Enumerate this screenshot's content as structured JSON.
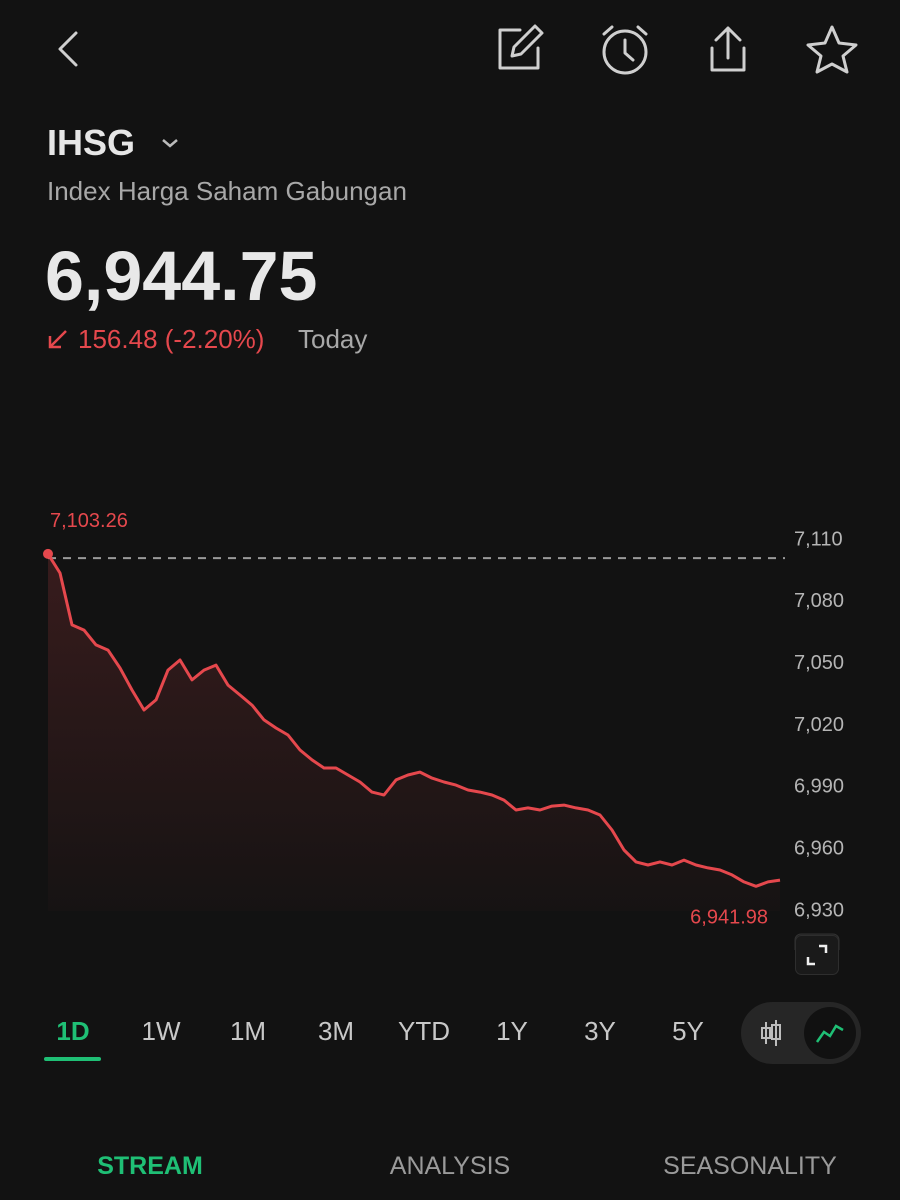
{
  "header": {
    "ticker": "IHSG",
    "name": "Index Harga Saham Gabungan",
    "price": "6,944.75",
    "change": "156.48 (-2.20%)",
    "period": "Today"
  },
  "ranges": [
    "1D",
    "1W",
    "1M",
    "3M",
    "YTD",
    "1Y",
    "3Y",
    "5Y"
  ],
  "tabs": [
    "STREAM",
    "ANALYSIS",
    "SEASONALITY"
  ],
  "chart_data": {
    "type": "line",
    "color": "#e5484d",
    "grid": false,
    "values": [
      7103.26,
      7094.0,
      7068.8,
      7066.3,
      7059.1,
      7056.6,
      7047.9,
      7037.2,
      7027.5,
      7032.4,
      7046.9,
      7051.8,
      7042.1,
      7046.9,
      7049.3,
      7039.6,
      7034.8,
      7029.9,
      7022.7,
      7018.8,
      7015.4,
      7008.1,
      7003.3,
      6999.4,
      6999.4,
      6996.0,
      6992.6,
      6987.7,
      6986.3,
      6993.6,
      6996.0,
      6997.4,
      6994.5,
      6992.6,
      6991.1,
      6988.7,
      6987.7,
      6986.3,
      6983.8,
      6979.0,
      6980.0,
      6979.0,
      6980.9,
      6981.4,
      6980.0,
      6979.0,
      6976.6,
      6969.3,
      6959.6,
      6953.8,
      6952.3,
      6953.8,
      6952.3,
      6954.7,
      6952.3,
      6950.9,
      6949.9,
      6947.5,
      6944.1,
      6941.98,
      6944.1,
      6945.0
    ],
    "value_labels": [
      "7,103.26",
      null,
      null,
      null,
      null,
      null,
      null,
      null,
      null,
      null,
      null,
      null,
      null,
      null,
      null,
      null,
      null,
      null,
      null,
      null,
      null,
      null,
      null,
      null,
      null,
      null,
      null,
      null,
      null,
      null,
      null,
      null,
      null,
      null,
      null,
      null,
      null,
      null,
      null,
      null,
      null,
      null,
      null,
      null,
      null,
      null,
      null,
      null,
      null,
      null,
      null,
      null,
      null,
      null,
      null,
      null,
      null,
      null,
      null,
      "6,941.98",
      null,
      null
    ],
    "reference_line": 7101.23,
    "ylim": [
      6930,
      7110
    ],
    "yticks": [
      {
        "value": 7110,
        "label": "7,110"
      },
      {
        "value": 7080,
        "label": "7,080"
      },
      {
        "value": 7050,
        "label": "7,050"
      },
      {
        "value": 7020,
        "label": "7,020"
      },
      {
        "value": 6990,
        "label": "6,990"
      },
      {
        "value": 6960,
        "label": "6,960"
      },
      {
        "value": 6930,
        "label": "6,930"
      }
    ]
  }
}
